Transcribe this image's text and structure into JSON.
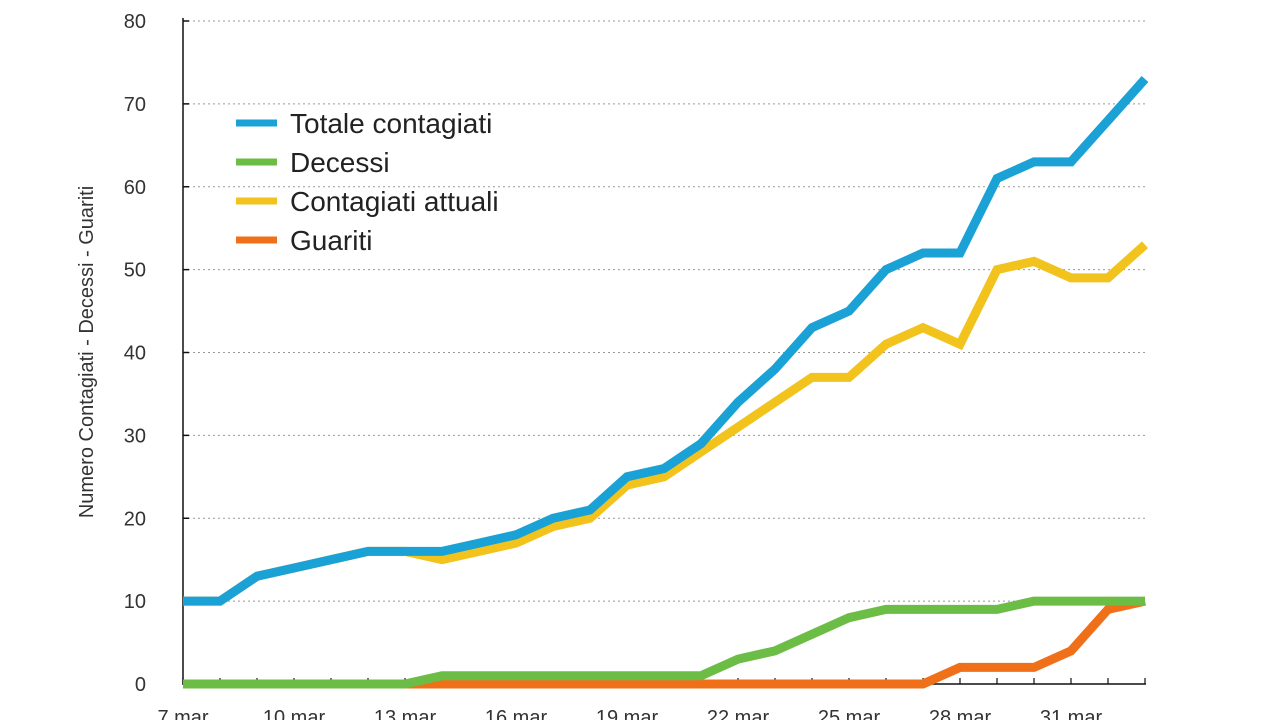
{
  "chart_data": {
    "type": "line",
    "title": "",
    "xlabel": "",
    "ylabel": "Numero Contagiati - Decessi - Guariti",
    "ylim": [
      0,
      80
    ],
    "yticks": [
      0,
      10,
      20,
      30,
      40,
      50,
      60,
      70,
      80
    ],
    "grid": "horizontal dotted",
    "legend_position": "top-left",
    "x": [
      "7 mar",
      "8 mar",
      "9 mar",
      "10 mar",
      "11 mar",
      "12 mar",
      "13 mar",
      "14 mar",
      "15 mar",
      "16 mar",
      "17 mar",
      "18 mar",
      "19 mar",
      "20 mar",
      "21 mar",
      "22 mar",
      "23 mar",
      "24 mar",
      "25 mar",
      "26 mar",
      "27 mar",
      "28 mar",
      "29 mar",
      "30 mar",
      "31 mar",
      "1 apr",
      "2 apr"
    ],
    "xtick_labels": [
      "7 mar",
      "10 mar",
      "13 mar",
      "16 mar",
      "19 mar",
      "22 mar",
      "25 mar",
      "28 mar",
      "31 mar"
    ],
    "series": [
      {
        "name": "Totale contagiati",
        "color": "#1aa1d6",
        "values": [
          10,
          10,
          13,
          14,
          15,
          16,
          16,
          16,
          17,
          18,
          20,
          21,
          25,
          26,
          29,
          34,
          38,
          43,
          45,
          50,
          52,
          52,
          61,
          63,
          63,
          68,
          73
        ]
      },
      {
        "name": "Decessi",
        "color": "#6cbd45",
        "values": [
          0,
          0,
          0,
          0,
          0,
          0,
          0,
          1,
          1,
          1,
          1,
          1,
          1,
          1,
          1,
          3,
          4,
          6,
          8,
          9,
          9,
          9,
          9,
          10,
          10,
          10,
          10
        ]
      },
      {
        "name": "Contagiati attuali",
        "color": "#f2c31c",
        "values": [
          10,
          10,
          13,
          14,
          15,
          16,
          16,
          15,
          16,
          17,
          19,
          20,
          24,
          25,
          28,
          31,
          34,
          37,
          37,
          41,
          43,
          41,
          50,
          51,
          49,
          49,
          53
        ]
      },
      {
        "name": "Guariti",
        "color": "#f07019",
        "values": [
          0,
          0,
          0,
          0,
          0,
          0,
          0,
          0,
          0,
          0,
          0,
          0,
          0,
          0,
          0,
          0,
          0,
          0,
          0,
          0,
          0,
          2,
          2,
          2,
          4,
          9,
          10
        ]
      }
    ]
  }
}
